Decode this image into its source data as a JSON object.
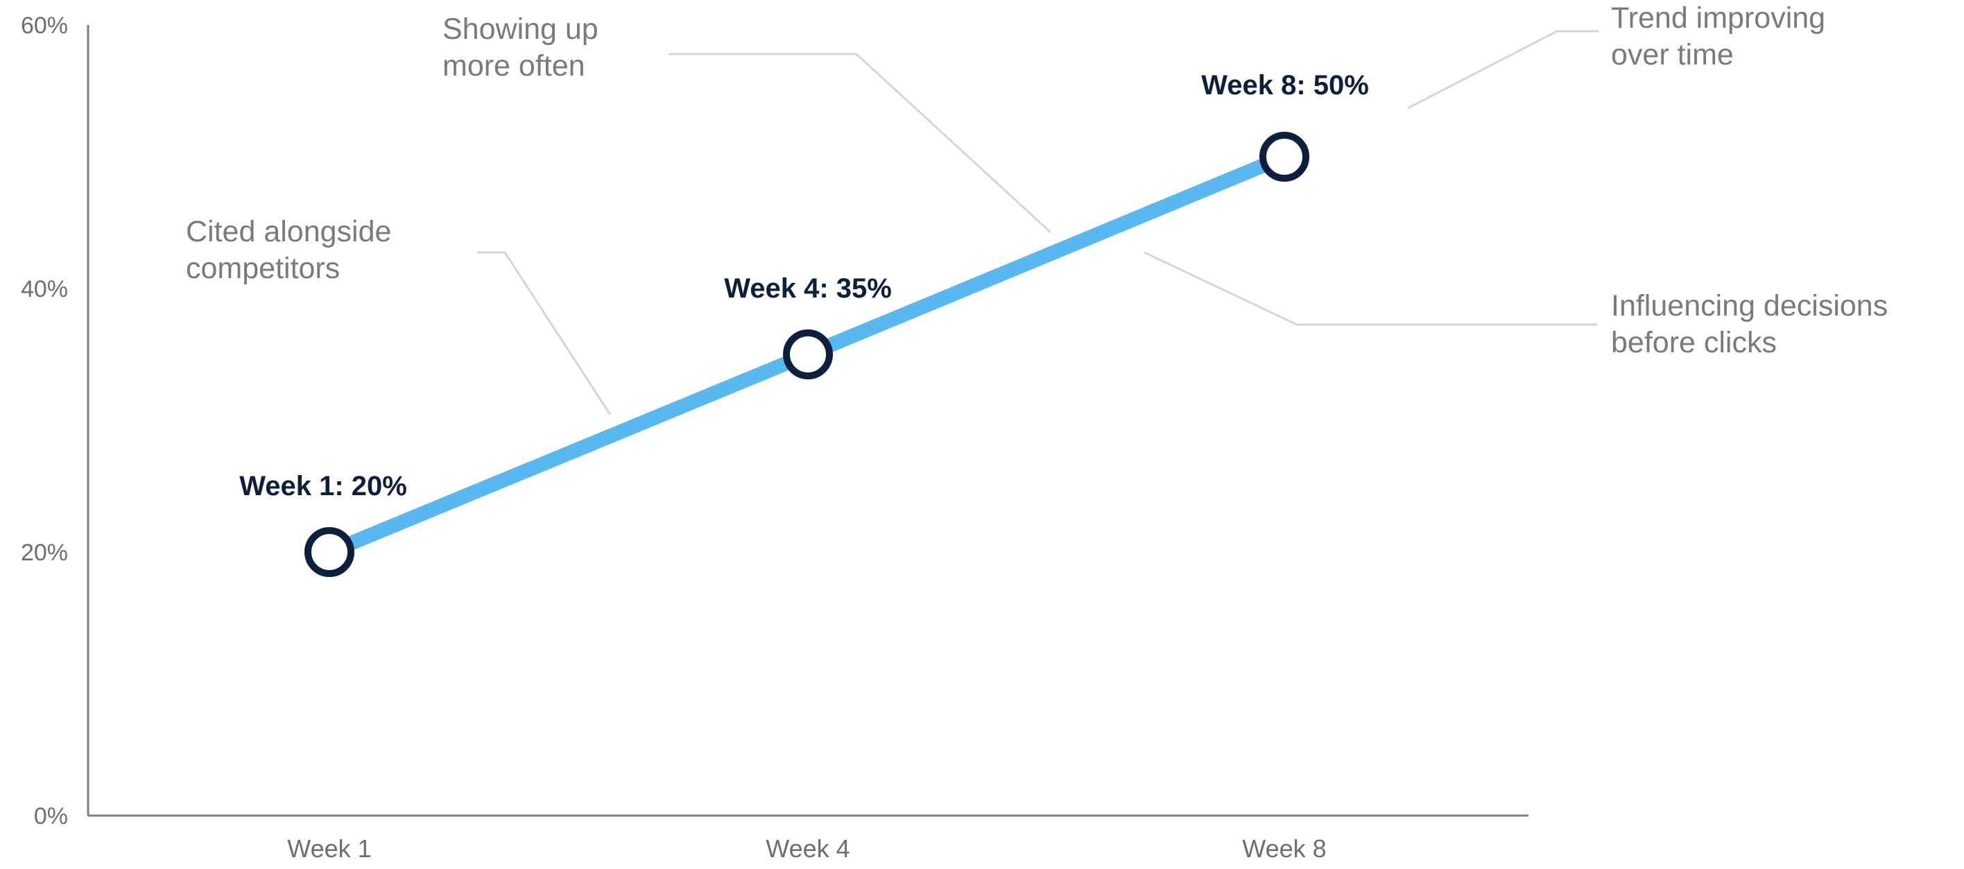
{
  "colors": {
    "line": "#5ab8f0",
    "marker_stroke": "#0d1f3c",
    "marker_fill": "#ffffff",
    "point_label": "#0d1f3c",
    "annotation_text": "#7a7a7a",
    "axis": "#7d7d7d",
    "leader_lines": "#d6d6d6"
  },
  "chart_data": {
    "type": "line",
    "title": "",
    "xlabel": "",
    "ylabel": "",
    "categories": [
      "Week 1",
      "Week 4",
      "Week 8"
    ],
    "x": [
      1,
      4,
      8
    ],
    "values": [
      20,
      35,
      50
    ],
    "ylim": [
      0,
      60
    ],
    "y_ticks": [
      0,
      20,
      40,
      60
    ],
    "y_tick_labels": [
      "0%",
      "20%",
      "40%",
      "60%"
    ],
    "x_tick_labels": [
      "Week 1",
      "Week 4",
      "Week 8"
    ],
    "point_labels": [
      "Week 1: 20%",
      "Week 4: 35%",
      "Week 8: 50%"
    ],
    "grid": false,
    "legend": "none",
    "annotations": [
      {
        "lines": [
          "Cited alongside",
          "competitors"
        ]
      },
      {
        "lines": [
          "Showing up",
          "more often"
        ]
      },
      {
        "lines": [
          "Trend improving",
          "over time"
        ]
      },
      {
        "lines": [
          "Influencing decisions",
          "before clicks"
        ]
      }
    ]
  }
}
